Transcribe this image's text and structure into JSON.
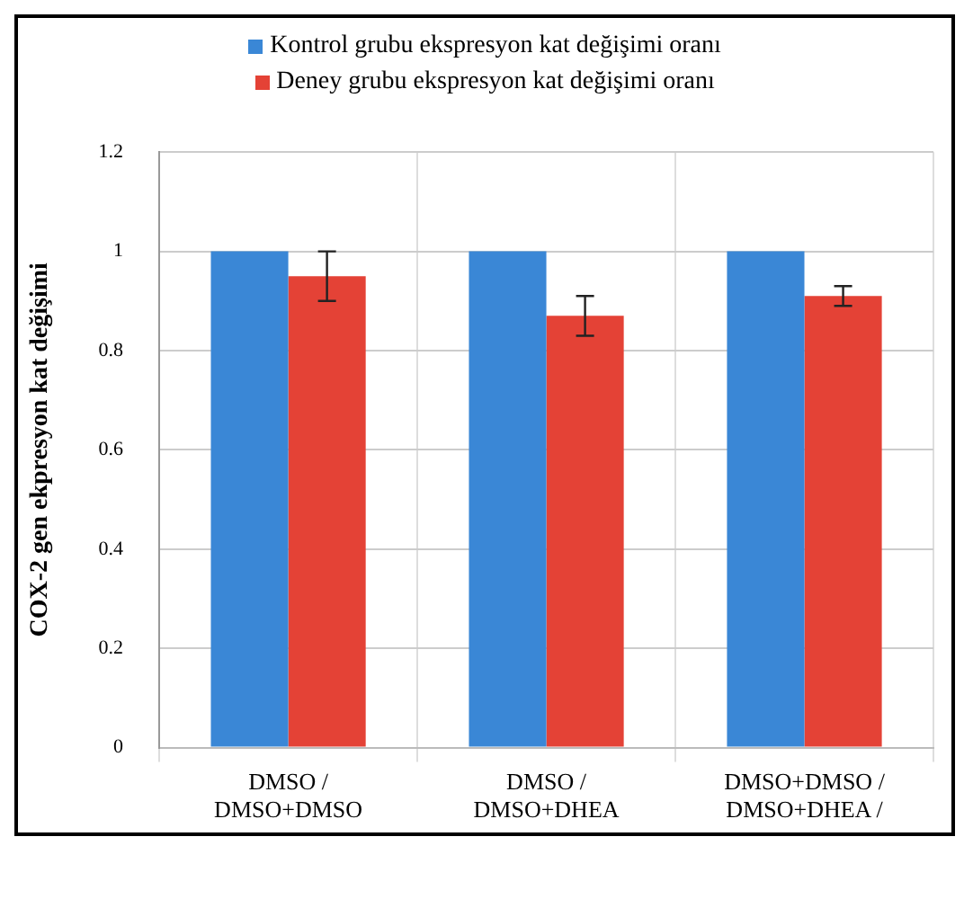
{
  "chart_data": {
    "type": "bar",
    "ylabel": "COX-2 gen ekpresyon kat değişimi",
    "categories": [
      "DMSO /\nDMSO+DMSO",
      "DMSO /\nDMSO+DHEA",
      "DMSO+DMSO /\nDMSO+DHEA /"
    ],
    "series": [
      {
        "name": "Kontrol grubu ekspresyon kat değişimi oranı",
        "color": "#3a87d6",
        "values": [
          1,
          1,
          1
        ]
      },
      {
        "name": "Deney grubu ekspresyon kat değişimi oranı",
        "color": "#e44236",
        "values": [
          0.95,
          0.87,
          0.91
        ],
        "errors": [
          0.05,
          0.04,
          0.02
        ]
      }
    ],
    "ylim": [
      0,
      1.2
    ],
    "yticks": [
      0,
      0.2,
      0.4,
      0.6,
      0.8,
      1,
      1.2
    ],
    "grid": "y",
    "legend": "top"
  }
}
